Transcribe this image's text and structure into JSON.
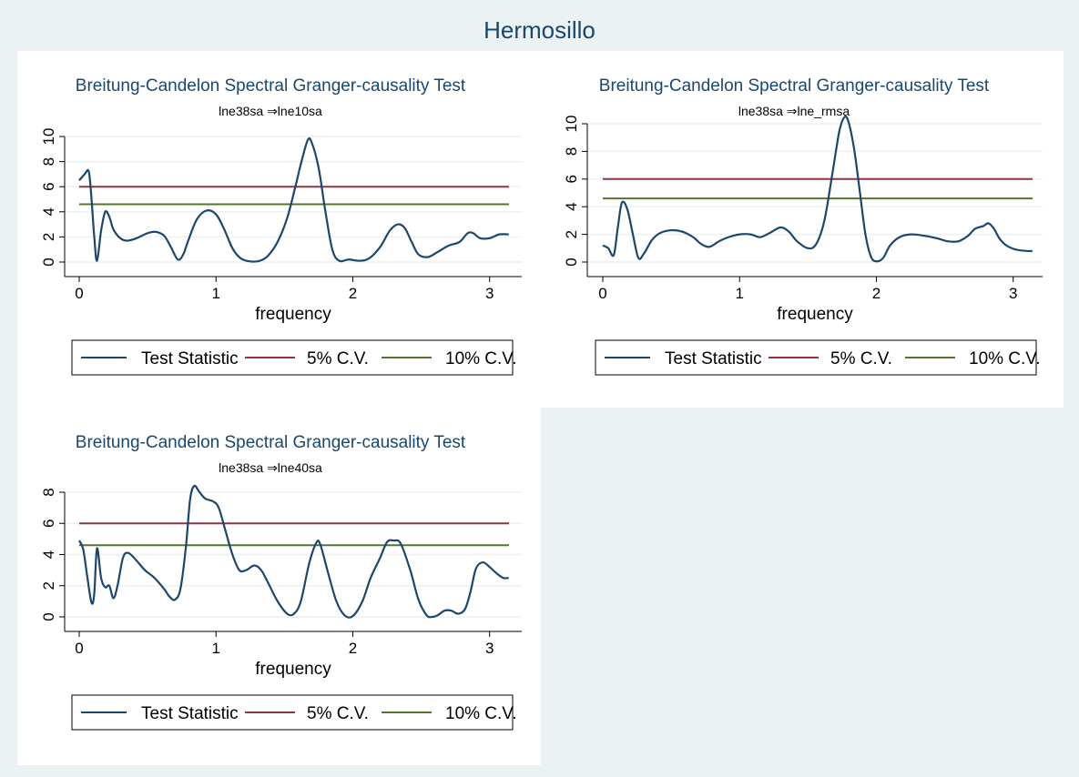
{
  "page_title": "Hermosillo",
  "colors": {
    "background": "#eaf2f3",
    "panel": "#ffffff",
    "title": "#1a476f",
    "grid": "#eaf2f3",
    "test_statistic": "#1a476f",
    "cv5": "#90353b",
    "cv10": "#55752f"
  },
  "chart_data": [
    {
      "type": "line",
      "title": "Breitung-Candelon Spectral Granger-causality Test",
      "subtitle": "lne38sa ⇒lne10sa",
      "xlabel": "frequency",
      "ylabel": "",
      "xlim": [
        0,
        3.1416
      ],
      "ylim": [
        0,
        10
      ],
      "x_ticks": [
        0,
        1,
        2,
        3
      ],
      "y_ticks": [
        0,
        2,
        4,
        6,
        8,
        10
      ],
      "grid": true,
      "legend_position": "bottom",
      "series": [
        {
          "name": "Test Statistic",
          "points": [
            [
              0.0,
              6.5
            ],
            [
              0.04,
              7.0
            ],
            [
              0.07,
              7.2
            ],
            [
              0.09,
              5.0
            ],
            [
              0.11,
              2.0
            ],
            [
              0.13,
              0.1
            ],
            [
              0.16,
              2.5
            ],
            [
              0.19,
              4.0
            ],
            [
              0.22,
              3.6
            ],
            [
              0.25,
              2.6
            ],
            [
              0.3,
              1.9
            ],
            [
              0.35,
              1.7
            ],
            [
              0.42,
              1.9
            ],
            [
              0.5,
              2.3
            ],
            [
              0.56,
              2.4
            ],
            [
              0.62,
              2.1
            ],
            [
              0.67,
              1.2
            ],
            [
              0.72,
              0.2
            ],
            [
              0.76,
              0.6
            ],
            [
              0.8,
              1.8
            ],
            [
              0.86,
              3.4
            ],
            [
              0.93,
              4.1
            ],
            [
              1.0,
              3.8
            ],
            [
              1.06,
              2.6
            ],
            [
              1.12,
              1.1
            ],
            [
              1.18,
              0.3
            ],
            [
              1.25,
              0.05
            ],
            [
              1.32,
              0.1
            ],
            [
              1.38,
              0.5
            ],
            [
              1.45,
              1.6
            ],
            [
              1.52,
              3.5
            ],
            [
              1.58,
              6.0
            ],
            [
              1.62,
              7.8
            ],
            [
              1.67,
              9.7
            ],
            [
              1.7,
              9.5
            ],
            [
              1.75,
              7.5
            ],
            [
              1.8,
              4.0
            ],
            [
              1.85,
              1.0
            ],
            [
              1.9,
              0.1
            ],
            [
              1.97,
              0.2
            ],
            [
              2.05,
              0.1
            ],
            [
              2.12,
              0.3
            ],
            [
              2.2,
              1.2
            ],
            [
              2.27,
              2.5
            ],
            [
              2.33,
              3.0
            ],
            [
              2.38,
              2.7
            ],
            [
              2.43,
              1.6
            ],
            [
              2.48,
              0.6
            ],
            [
              2.55,
              0.4
            ],
            [
              2.62,
              0.8
            ],
            [
              2.7,
              1.3
            ],
            [
              2.78,
              1.6
            ],
            [
              2.84,
              2.3
            ],
            [
              2.88,
              2.3
            ],
            [
              2.93,
              1.9
            ],
            [
              3.0,
              1.9
            ],
            [
              3.07,
              2.2
            ],
            [
              3.14,
              2.2
            ]
          ]
        },
        {
          "name": "5% C.V.",
          "constant": 6.0
        },
        {
          "name": "10% C.V.",
          "constant": 4.6
        }
      ],
      "legend": [
        "Test Statistic",
        "5% C.V.",
        "10% C.V."
      ]
    },
    {
      "type": "line",
      "title": "Breitung-Candelon Spectral Granger-causality Test",
      "subtitle": "lne38sa ⇒lne_rmsa",
      "xlabel": "frequency",
      "ylabel": "",
      "xlim": [
        0,
        3.1416
      ],
      "ylim": [
        0,
        10
      ],
      "x_ticks": [
        0,
        1,
        2,
        3
      ],
      "y_ticks": [
        0,
        2,
        4,
        6,
        8,
        10
      ],
      "grid": true,
      "legend_position": "bottom",
      "series": [
        {
          "name": "Test Statistic",
          "points": [
            [
              0.0,
              1.2
            ],
            [
              0.04,
              1.0
            ],
            [
              0.08,
              0.5
            ],
            [
              0.11,
              2.5
            ],
            [
              0.14,
              4.3
            ],
            [
              0.18,
              3.8
            ],
            [
              0.22,
              2.0
            ],
            [
              0.26,
              0.3
            ],
            [
              0.3,
              0.6
            ],
            [
              0.36,
              1.6
            ],
            [
              0.42,
              2.1
            ],
            [
              0.5,
              2.3
            ],
            [
              0.58,
              2.2
            ],
            [
              0.66,
              1.8
            ],
            [
              0.72,
              1.3
            ],
            [
              0.78,
              1.1
            ],
            [
              0.85,
              1.5
            ],
            [
              0.92,
              1.8
            ],
            [
              1.0,
              2.0
            ],
            [
              1.08,
              2.0
            ],
            [
              1.15,
              1.8
            ],
            [
              1.22,
              2.1
            ],
            [
              1.3,
              2.5
            ],
            [
              1.36,
              2.2
            ],
            [
              1.42,
              1.5
            ],
            [
              1.5,
              1.0
            ],
            [
              1.56,
              1.3
            ],
            [
              1.62,
              3.0
            ],
            [
              1.68,
              6.5
            ],
            [
              1.73,
              9.5
            ],
            [
              1.77,
              10.5
            ],
            [
              1.8,
              10.0
            ],
            [
              1.84,
              8.0
            ],
            [
              1.88,
              5.0
            ],
            [
              1.92,
              2.0
            ],
            [
              1.96,
              0.4
            ],
            [
              2.0,
              0.05
            ],
            [
              2.05,
              0.3
            ],
            [
              2.1,
              1.2
            ],
            [
              2.17,
              1.8
            ],
            [
              2.25,
              2.0
            ],
            [
              2.35,
              1.9
            ],
            [
              2.45,
              1.7
            ],
            [
              2.52,
              1.5
            ],
            [
              2.6,
              1.5
            ],
            [
              2.67,
              1.9
            ],
            [
              2.72,
              2.4
            ],
            [
              2.78,
              2.6
            ],
            [
              2.82,
              2.8
            ],
            [
              2.86,
              2.4
            ],
            [
              2.9,
              1.7
            ],
            [
              2.95,
              1.2
            ],
            [
              3.02,
              0.9
            ],
            [
              3.1,
              0.8
            ],
            [
              3.14,
              0.8
            ]
          ]
        },
        {
          "name": "5% C.V.",
          "constant": 6.0
        },
        {
          "name": "10% C.V.",
          "constant": 4.6
        }
      ],
      "legend": [
        "Test Statistic",
        "5% C.V.",
        "10% C.V."
      ]
    },
    {
      "type": "line",
      "title": "Breitung-Candelon Spectral Granger-causality Test",
      "subtitle": "lne38sa ⇒lne40sa",
      "xlabel": "frequency",
      "ylabel": "",
      "xlim": [
        0,
        3.1416
      ],
      "ylim": [
        0,
        8
      ],
      "x_ticks": [
        0,
        1,
        2,
        3
      ],
      "y_ticks": [
        0,
        2,
        4,
        6,
        8
      ],
      "grid": true,
      "legend_position": "bottom",
      "series": [
        {
          "name": "Test Statistic",
          "points": [
            [
              0.0,
              4.9
            ],
            [
              0.03,
              4.3
            ],
            [
              0.06,
              2.5
            ],
            [
              0.09,
              0.9
            ],
            [
              0.11,
              1.5
            ],
            [
              0.13,
              4.4
            ],
            [
              0.16,
              2.5
            ],
            [
              0.19,
              1.9
            ],
            [
              0.22,
              2.0
            ],
            [
              0.25,
              1.2
            ],
            [
              0.28,
              2.0
            ],
            [
              0.32,
              3.8
            ],
            [
              0.36,
              4.1
            ],
            [
              0.42,
              3.6
            ],
            [
              0.48,
              3.0
            ],
            [
              0.55,
              2.5
            ],
            [
              0.62,
              1.8
            ],
            [
              0.66,
              1.3
            ],
            [
              0.7,
              1.1
            ],
            [
              0.74,
              1.8
            ],
            [
              0.78,
              4.5
            ],
            [
              0.81,
              7.5
            ],
            [
              0.84,
              8.4
            ],
            [
              0.88,
              8.0
            ],
            [
              0.92,
              7.6
            ],
            [
              0.98,
              7.4
            ],
            [
              1.02,
              7.0
            ],
            [
              1.07,
              5.5
            ],
            [
              1.12,
              4.0
            ],
            [
              1.17,
              3.0
            ],
            [
              1.22,
              3.0
            ],
            [
              1.28,
              3.3
            ],
            [
              1.33,
              3.0
            ],
            [
              1.38,
              2.2
            ],
            [
              1.45,
              1.0
            ],
            [
              1.52,
              0.2
            ],
            [
              1.57,
              0.2
            ],
            [
              1.62,
              1.0
            ],
            [
              1.68,
              3.4
            ],
            [
              1.73,
              4.7
            ],
            [
              1.76,
              4.7
            ],
            [
              1.82,
              2.8
            ],
            [
              1.88,
              1.0
            ],
            [
              1.94,
              0.1
            ],
            [
              2.0,
              0.05
            ],
            [
              2.07,
              1.0
            ],
            [
              2.13,
              2.5
            ],
            [
              2.2,
              3.8
            ],
            [
              2.25,
              4.8
            ],
            [
              2.3,
              4.9
            ],
            [
              2.35,
              4.7
            ],
            [
              2.42,
              3.0
            ],
            [
              2.48,
              1.1
            ],
            [
              2.54,
              0.1
            ],
            [
              2.58,
              0.0
            ],
            [
              2.62,
              0.1
            ],
            [
              2.67,
              0.4
            ],
            [
              2.72,
              0.4
            ],
            [
              2.77,
              0.2
            ],
            [
              2.82,
              0.5
            ],
            [
              2.86,
              1.6
            ],
            [
              2.9,
              3.1
            ],
            [
              2.95,
              3.5
            ],
            [
              3.0,
              3.2
            ],
            [
              3.05,
              2.8
            ],
            [
              3.1,
              2.5
            ],
            [
              3.14,
              2.5
            ]
          ]
        },
        {
          "name": "5% C.V.",
          "constant": 6.0
        },
        {
          "name": "10% C.V.",
          "constant": 4.6
        }
      ],
      "legend": [
        "Test Statistic",
        "5% C.V.",
        "10% C.V."
      ]
    }
  ]
}
